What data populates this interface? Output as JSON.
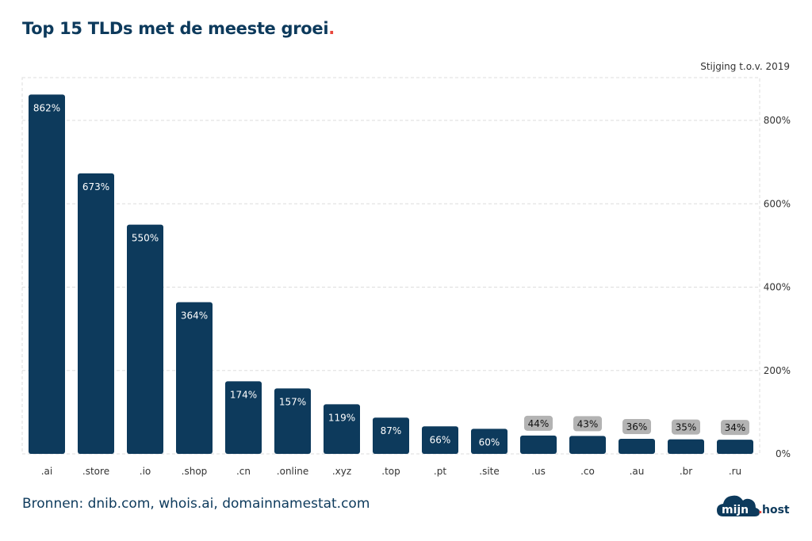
{
  "title": "Top 15 TLDs met de meeste groei",
  "title_dot": ".",
  "unit_note": "Stijging t.o.v. 2019",
  "source": "Bronnen: dnib.com, whois.ai, domainnamestat.com",
  "logo": {
    "left": "mijn",
    "dot": ".",
    "right": "host"
  },
  "colors": {
    "bar": "#0d3a5c",
    "label_dark_bg": "#0d3a5c",
    "badge_bg": "#b3b3b3",
    "accent": "#e8463c",
    "grid": "#dddddd"
  },
  "chart_data": {
    "type": "bar",
    "categories": [
      ".ai",
      ".store",
      ".io",
      ".shop",
      ".cn",
      ".online",
      ".xyz",
      ".top",
      ".pt",
      ".site",
      ".us",
      ".co",
      ".au",
      ".br",
      ".ru"
    ],
    "values": [
      862,
      673,
      550,
      364,
      174,
      157,
      119,
      87,
      66,
      60,
      44,
      43,
      36,
      35,
      34
    ],
    "data_labels": [
      "862%",
      "673%",
      "550%",
      "364%",
      "174%",
      "157%",
      "119%",
      "87%",
      "66%",
      "60%",
      "44%",
      "43%",
      "36%",
      "35%",
      "34%"
    ],
    "yticks": [
      0,
      200,
      400,
      600,
      800
    ],
    "ytick_labels": [
      "0%",
      "200%",
      "400%",
      "600%",
      "800%"
    ],
    "ylim": [
      0,
      900
    ],
    "yaxis_position": "right",
    "grid": true
  }
}
